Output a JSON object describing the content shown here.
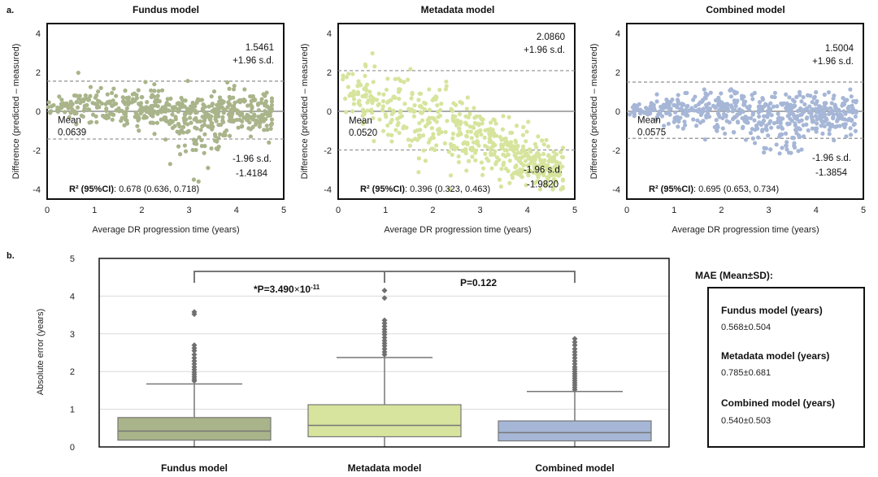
{
  "panel_a_label": "a.",
  "panel_b_label": "b.",
  "colors": {
    "fundus": "#a9b48a",
    "metadata": "#d6e49d",
    "combined": "#a6b6d6",
    "axis": "#222222",
    "zero": "#8f8f8f",
    "sd": "#8f8f8f",
    "box_edge": "#777777",
    "grid": "#d9d9d9"
  },
  "chart_data": [
    {
      "type": "scatter",
      "id": "fundus",
      "title": "Fundus model",
      "xlabel": "Average DR progression time (years)",
      "ylabel": "Difference (predicted – measured)",
      "xlim": [
        0,
        5
      ],
      "ylim": [
        -4.5,
        4.5
      ],
      "xticks": [
        0,
        1,
        2,
        3,
        4,
        5
      ],
      "yticks": [
        -4,
        -2,
        0,
        2,
        4
      ],
      "mean": 0.0639,
      "upper_sd": 1.5461,
      "lower_sd": -1.4184,
      "upper_sd_label": "1.5461",
      "upper_sd_text": "+1.96 s.d.",
      "lower_sd_text": "-1.96 s.d.",
      "lower_sd_label": "-1.4184",
      "mean_text": "Mean",
      "mean_label": "0.0639",
      "r2_key": "R² (95%CI)",
      "r2_value": ": 0.678 (0.636, 0.718)",
      "seed": 11,
      "dist": {
        "center": 0.2,
        "spread": 0.55,
        "xmax": 4.75,
        "tail": "fundus"
      }
    },
    {
      "type": "scatter",
      "id": "metadata",
      "title": "Metadata model",
      "xlabel": "Average DR progression time (years)",
      "ylabel": "Difference (predicted – measured)",
      "xlim": [
        0,
        5
      ],
      "ylim": [
        -4.5,
        4.5
      ],
      "xticks": [
        0,
        1,
        2,
        3,
        4,
        5
      ],
      "yticks": [
        -4,
        -2,
        0,
        2,
        4
      ],
      "mean": 0.052,
      "upper_sd": 2.086,
      "lower_sd": -1.982,
      "upper_sd_label": "2.0860",
      "upper_sd_text": "+1.96 s.d.",
      "lower_sd_text": "-1.96 s.d.",
      "lower_sd_label": "-1.9820",
      "mean_text": "Mean",
      "mean_label": "0.0520",
      "r2_key": "R² (95%CI)",
      "r2_value": ": 0.396 (0.323, 0.463)",
      "seed": 23,
      "dist": {
        "center": 0.0,
        "spread": 1.0,
        "xmax": 4.75,
        "tail": "metadata"
      }
    },
    {
      "type": "scatter",
      "id": "combined",
      "title": "Combined model",
      "xlabel": "Average DR progression time (years)",
      "ylabel": "Difference (predicted – measured)",
      "xlim": [
        0,
        5
      ],
      "ylim": [
        -4.5,
        4.5
      ],
      "xticks": [
        0,
        1,
        2,
        3,
        4,
        5
      ],
      "yticks": [
        -4,
        -2,
        0,
        2,
        4
      ],
      "mean": 0.0575,
      "upper_sd": 1.5004,
      "lower_sd": -1.3854,
      "upper_sd_label": "1.5004",
      "upper_sd_text": "+1.96 s.d.",
      "lower_sd_text": "-1.96 s.d.",
      "lower_sd_label": "-1.3854",
      "mean_text": "Mean",
      "mean_label": "0.0575",
      "r2_key": "R² (95%CI)",
      "r2_value": ": 0.695 (0.653, 0.734)",
      "seed": 37,
      "dist": {
        "center": 0.1,
        "spread": 0.55,
        "xmax": 4.85,
        "tail": "combined"
      }
    },
    {
      "type": "box",
      "id": "mae-box",
      "ylabel": "Absolute error (years)",
      "ylim": [
        0,
        5
      ],
      "yticks": [
        0,
        1,
        2,
        3,
        4,
        5
      ],
      "categories": [
        "Fundus model",
        "Metadata model",
        "Combined model"
      ],
      "boxes": [
        {
          "name": "Fundus model",
          "q1": 0.18,
          "median": 0.42,
          "q3": 0.78,
          "whisker_low": 0,
          "whisker_high": 1.67,
          "outliers": [
            1.75,
            1.8,
            1.86,
            1.92,
            1.98,
            2.05,
            2.12,
            2.2,
            2.28,
            2.36,
            2.45,
            2.55,
            2.62,
            2.7,
            3.52,
            3.58
          ]
        },
        {
          "name": "Metadata model",
          "q1": 0.27,
          "median": 0.57,
          "q3": 1.12,
          "whisker_low": 0,
          "whisker_high": 2.37,
          "outliers": [
            2.45,
            2.52,
            2.6,
            2.68,
            2.75,
            2.82,
            2.9,
            2.98,
            3.05,
            3.12,
            3.2,
            3.28,
            3.36,
            3.95,
            4.15
          ]
        },
        {
          "name": "Combined model",
          "q1": 0.16,
          "median": 0.38,
          "q3": 0.69,
          "whisker_low": 0,
          "whisker_high": 1.47,
          "outliers": [
            1.52,
            1.58,
            1.64,
            1.7,
            1.76,
            1.82,
            1.88,
            1.94,
            2.0,
            2.06,
            2.12,
            2.2,
            2.28,
            2.36,
            2.44,
            2.52,
            2.6,
            2.7,
            2.78,
            2.87
          ]
        }
      ],
      "comparisons": [
        {
          "label_prefix": "*P=3.490",
          "label_times": "×",
          "label_base": "10",
          "label_exp": "-11"
        },
        {
          "label": "P=0.122"
        }
      ]
    }
  ],
  "mae": {
    "title": "MAE (Mean±SD):",
    "items": [
      {
        "label": "Fundus model (years)",
        "value": "0.568±0.504"
      },
      {
        "label": "Metadata model  (years)",
        "value": "0.785±0.681"
      },
      {
        "label": "Combined  model (years)",
        "value": "0.540±0.503"
      }
    ]
  }
}
